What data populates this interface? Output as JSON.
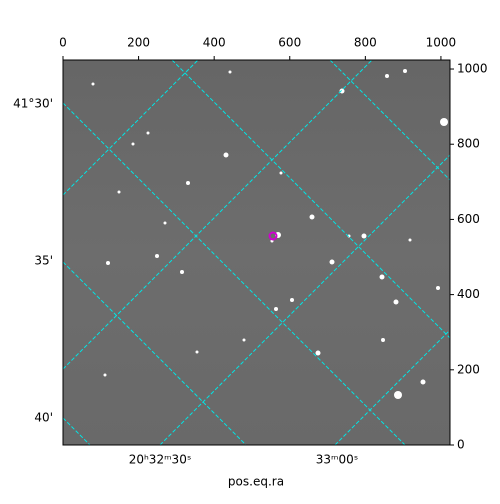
{
  "chart_data": {
    "type": "image",
    "xlim": [
      0,
      1024
    ],
    "ylim": [
      0,
      1024
    ],
    "xticks": [
      0,
      200,
      400,
      600,
      800,
      1000
    ],
    "yticks": [
      0,
      200,
      400,
      600,
      800,
      1000
    ],
    "dec_labels": [
      "41°30'",
      "35'",
      "40'"
    ],
    "ra_labels": [
      "20ʰ32ᵐ30ˢ",
      "33ᵐ00ˢ"
    ],
    "xlabel": "pos.eq.ra",
    "grid_color": "#00e5e5"
  }
}
